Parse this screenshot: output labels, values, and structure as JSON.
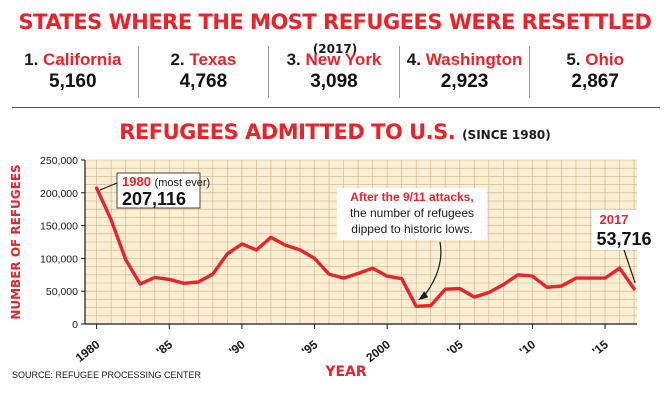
{
  "header": {
    "title": "STATES WHERE THE MOST REFUGEES WERE RESETTLED",
    "title_note": "(2017)"
  },
  "top_states": [
    {
      "rank": "1.",
      "name": "California",
      "value": "5,160"
    },
    {
      "rank": "2.",
      "name": "Texas",
      "value": "4,768"
    },
    {
      "rank": "3.",
      "name": "New York",
      "value": "3,098"
    },
    {
      "rank": "4.",
      "name": "Washington",
      "value": "2,923"
    },
    {
      "rank": "5.",
      "name": "Ohio",
      "value": "2,867"
    }
  ],
  "chart_header": {
    "title": "REFUGEES ADMITTED TO U.S.",
    "title_note": "(SINCE 1980)"
  },
  "source": "SOURCE: REFUGEE PROCESSING CENTER",
  "colors": {
    "accent": "#e8242b",
    "plot_background": "#fbeed3",
    "grid": "#c9b48d",
    "text": "#1a1a1a"
  },
  "chart_data": {
    "type": "line",
    "xlabel": "YEAR",
    "ylabel": "NUMBER OF REFUGEES",
    "xlim": [
      1979.2,
      2017.2
    ],
    "ylim": [
      0,
      250000
    ],
    "x_ticks": [
      1980,
      1985,
      1990,
      1995,
      2000,
      2005,
      2010,
      2015
    ],
    "x_tick_labels": [
      "1980",
      "'85",
      "'90",
      "'95",
      "2000",
      "'05",
      "'10",
      "'15"
    ],
    "y_ticks": [
      0,
      50000,
      100000,
      150000,
      200000,
      250000
    ],
    "y_tick_labels": [
      "0",
      "50,000",
      "100,000",
      "150,000",
      "200,000",
      "250,000"
    ],
    "grid": true,
    "series": [
      {
        "x": [
          1980,
          1981,
          1982,
          1983,
          1984,
          1985,
          1986,
          1987,
          1988,
          1989,
          1990,
          1991,
          1992,
          1993,
          1994,
          1995,
          1996,
          1997,
          1998,
          1999,
          2000,
          2001,
          2002,
          2003,
          2004,
          2005,
          2006,
          2007,
          2008,
          2009,
          2010,
          2011,
          2012,
          2013,
          2014,
          2015,
          2016,
          2017
        ],
        "y": [
          207116,
          159000,
          98000,
          61000,
          71000,
          68000,
          62000,
          64000,
          76000,
          107000,
          122000,
          113000,
          132000,
          120000,
          113000,
          100000,
          76000,
          70000,
          77000,
          85000,
          73000,
          69000,
          27000,
          28000,
          53000,
          54000,
          41000,
          48000,
          60000,
          75000,
          73000,
          56000,
          58000,
          70000,
          70000,
          70000,
          85000,
          53716
        ]
      }
    ],
    "annotations": [
      {
        "year_label": "1980",
        "note": "(most ever)",
        "value": "207,116"
      },
      {
        "lines": [
          "After the 9/11 attacks,",
          "the number of refugees",
          "dipped to historic lows."
        ]
      },
      {
        "year_label": "2017",
        "value": "53,716"
      }
    ]
  }
}
